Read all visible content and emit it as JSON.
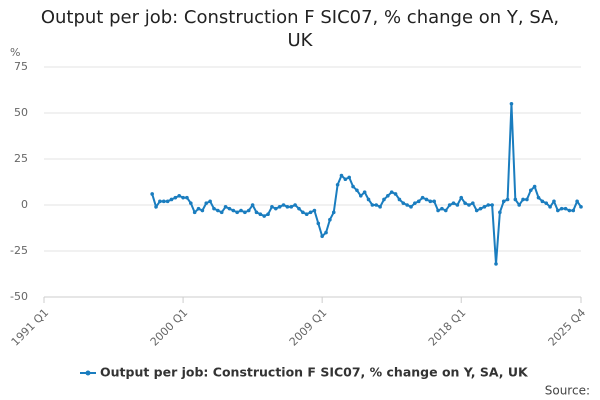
{
  "chart_data": {
    "type": "line",
    "title": "Output per job: Construction F SIC07, % change on Y, SA, UK",
    "y_label": "%",
    "source_label": "Source:",
    "categories": [
      "1991 Q1",
      null,
      null,
      null,
      null,
      null,
      null,
      null,
      null,
      null,
      null,
      null,
      null,
      null,
      null,
      null,
      null,
      null,
      null,
      null,
      null,
      null,
      null,
      null,
      null,
      null,
      null,
      null,
      null,
      null,
      null,
      null,
      null,
      null,
      null,
      null,
      "2000 Q1",
      null,
      null,
      null,
      null,
      null,
      null,
      null,
      null,
      null,
      null,
      null,
      null,
      null,
      null,
      null,
      null,
      null,
      null,
      null,
      null,
      null,
      null,
      null,
      null,
      null,
      null,
      null,
      null,
      null,
      null,
      null,
      null,
      null,
      null,
      null,
      "2009 Q1",
      null,
      null,
      null,
      null,
      null,
      null,
      null,
      null,
      null,
      null,
      null,
      null,
      null,
      null,
      null,
      null,
      null,
      null,
      null,
      null,
      null,
      null,
      null,
      null,
      null,
      null,
      null,
      null,
      null,
      null,
      null,
      null,
      null,
      null,
      null,
      "2018 Q1",
      null,
      null,
      null,
      null,
      null,
      null,
      null,
      null,
      null,
      null,
      null,
      null,
      null,
      null,
      null,
      null,
      null,
      null,
      null,
      null,
      null,
      null,
      null,
      null,
      null,
      null,
      null,
      null,
      null,
      null,
      "2025 Q4"
    ],
    "series": [
      {
        "name": "Output per job: Construction F SIC07, % change on Y, SA, UK",
        "color": "#1a7dbf",
        "values": [
          null,
          null,
          null,
          null,
          null,
          null,
          null,
          null,
          null,
          null,
          null,
          null,
          null,
          null,
          null,
          null,
          null,
          null,
          null,
          null,
          null,
          null,
          null,
          null,
          null,
          null,
          null,
          null,
          6,
          -1,
          2,
          2,
          2,
          3,
          4,
          5,
          4,
          4,
          1,
          -4,
          -2,
          -3,
          1,
          2,
          -2,
          -3,
          -4,
          -1,
          -2,
          -3,
          -4,
          -3,
          -4,
          -3,
          0,
          -4,
          -5,
          -6,
          -5,
          -1,
          -2,
          -1,
          0,
          -1,
          -1,
          0,
          -2,
          -4,
          -5,
          -4,
          -3,
          -10,
          -17,
          -15,
          -8,
          -4,
          11,
          16,
          14,
          15,
          10,
          8,
          5,
          7,
          3,
          0,
          0,
          -1,
          3,
          5,
          7,
          6,
          3,
          1,
          0,
          -1,
          1,
          2,
          4,
          3,
          2,
          2,
          -3,
          -2,
          -3,
          0,
          1,
          0,
          4,
          1,
          0,
          1,
          -3,
          -2,
          -1,
          0,
          0,
          -32,
          -4,
          2,
          3,
          55,
          3,
          0,
          3,
          3,
          8,
          10,
          4,
          2,
          1,
          -1,
          2,
          -3,
          -2,
          -2,
          -3,
          -3,
          2,
          -1
        ]
      }
    ],
    "ylim": [
      -50,
      75
    ],
    "yticks": [
      -50,
      -25,
      0,
      25,
      50,
      75
    ],
    "grid": true
  }
}
